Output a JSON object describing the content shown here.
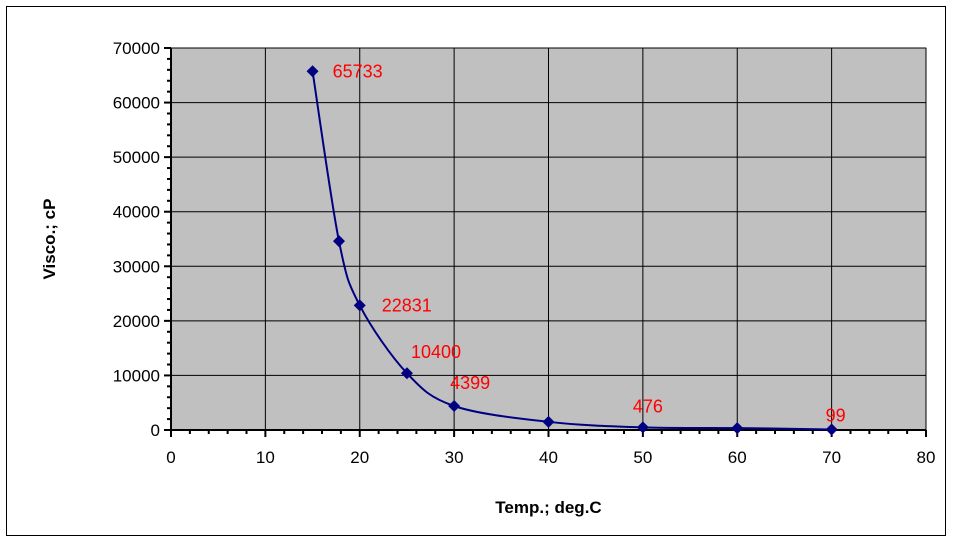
{
  "chart_data": {
    "type": "scatter",
    "title": "",
    "xlabel": "Temp.; deg.C",
    "ylabel": "Visco.; cP",
    "xlim": [
      0,
      80
    ],
    "ylim": [
      0,
      70000
    ],
    "xticks": [
      0,
      10,
      20,
      30,
      40,
      50,
      60,
      70,
      80
    ],
    "yticks": [
      0,
      10000,
      20000,
      30000,
      40000,
      50000,
      60000,
      70000
    ],
    "grid": true,
    "legend": "none",
    "plot_background": "#c0c0c0",
    "series": [
      {
        "color": "#000080",
        "line": "smooth",
        "marker": "diamond",
        "points": [
          {
            "x": 15,
            "y": 65733
          },
          {
            "x": 17.8,
            "y": 34600
          },
          {
            "x": 20,
            "y": 22831
          },
          {
            "x": 25,
            "y": 10400
          },
          {
            "x": 30,
            "y": 4399
          },
          {
            "x": 40,
            "y": 1500
          },
          {
            "x": 50,
            "y": 476
          },
          {
            "x": 60,
            "y": 350
          },
          {
            "x": 70,
            "y": 99
          }
        ]
      }
    ],
    "data_labels": [
      {
        "x": 15,
        "y": 65733,
        "text": "65733"
      },
      {
        "x": 20,
        "y": 22831,
        "text": "22831"
      },
      {
        "x": 25,
        "y": 10400,
        "text": "10400"
      },
      {
        "x": 30,
        "y": 4399,
        "text": "4399"
      },
      {
        "x": 50,
        "y": 476,
        "text": "476"
      },
      {
        "x": 70,
        "y": 99,
        "text": "99"
      }
    ],
    "data_label_color": "#ff0000"
  }
}
